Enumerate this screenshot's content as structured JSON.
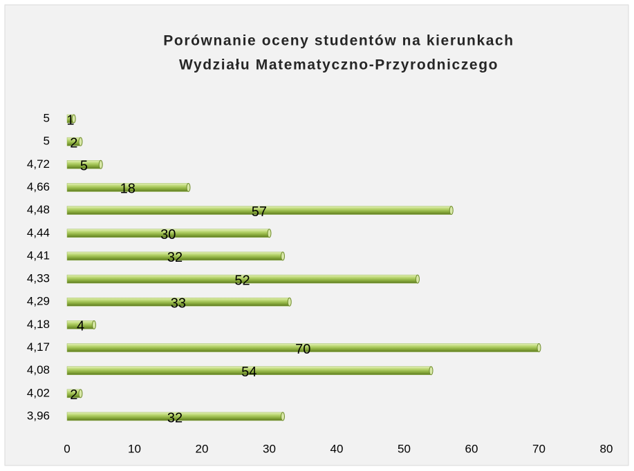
{
  "chart_data": {
    "type": "bar",
    "orientation": "horizontal",
    "title": [
      "Porównanie oceny studentów na kierunkach",
      "Wydziału Matematyczno-Przyrodniczego"
    ],
    "categories": [
      "5",
      "5",
      "4,72",
      "4,66",
      "4,48",
      "4,44",
      "4,41",
      "4,33",
      "4,29",
      "4,18",
      "4,17",
      "4,08",
      "4,02",
      "3,96"
    ],
    "values": [
      1,
      2,
      5,
      18,
      57,
      30,
      32,
      52,
      33,
      4,
      70,
      54,
      2,
      32
    ],
    "color": "#9bbb59",
    "xlim": [
      0,
      80
    ],
    "xticks": [
      0,
      10,
      20,
      30,
      40,
      50,
      60,
      70,
      80
    ],
    "data_labels": true,
    "grid": false
  }
}
